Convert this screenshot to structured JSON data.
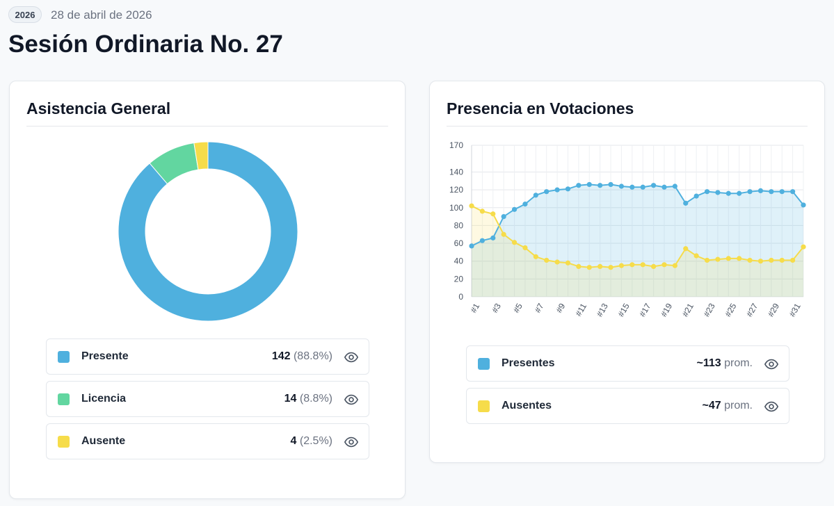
{
  "header": {
    "year_badge": "2026",
    "date": "28 de abril de 2026",
    "title": "Sesión Ordinaria No. 27"
  },
  "colors": {
    "presente": "#4fb0de",
    "licencia": "#62d6a0",
    "ausente": "#f6dc4a"
  },
  "attendance": {
    "title": "Asistencia General",
    "chart_data": {
      "type": "pie",
      "variant": "donut",
      "categories": [
        "Presente",
        "Licencia",
        "Ausente"
      ],
      "values": [
        142,
        14,
        4
      ],
      "colors": [
        "#4fb0de",
        "#62d6a0",
        "#f6dc4a"
      ]
    },
    "legend": [
      {
        "label": "Presente",
        "count": "142",
        "percent": "(88.8%)",
        "color": "#4fb0de",
        "icon": "eye-icon"
      },
      {
        "label": "Licencia",
        "count": "14",
        "percent": "(8.8%)",
        "color": "#62d6a0",
        "icon": "eye-icon"
      },
      {
        "label": "Ausente",
        "count": "4",
        "percent": "(2.5%)",
        "color": "#f6dc4a",
        "icon": "eye-icon"
      }
    ]
  },
  "votes": {
    "title": "Presencia en Votaciones",
    "chart_data": {
      "type": "area",
      "x": [
        "#1",
        "#2",
        "#3",
        "#4",
        "#5",
        "#6",
        "#7",
        "#8",
        "#9",
        "#10",
        "#11",
        "#12",
        "#13",
        "#14",
        "#15",
        "#16",
        "#17",
        "#18",
        "#19",
        "#20",
        "#21",
        "#22",
        "#23",
        "#24",
        "#25",
        "#26",
        "#27",
        "#28",
        "#29",
        "#30",
        "#31",
        "#32"
      ],
      "x_tick_labels": [
        "#1",
        "#3",
        "#5",
        "#7",
        "#9",
        "#11",
        "#13",
        "#15",
        "#17",
        "#19",
        "#21",
        "#23",
        "#25",
        "#27",
        "#29",
        "#31"
      ],
      "y_ticks": [
        0,
        20,
        40,
        60,
        80,
        100,
        120,
        140,
        170
      ],
      "ylim": [
        0,
        170
      ],
      "grid": true,
      "series": [
        {
          "name": "Presentes",
          "color": "#4fb0de",
          "values": [
            57,
            63,
            66,
            90,
            98,
            104,
            114,
            118,
            120,
            121,
            125,
            126,
            125,
            126,
            124,
            123,
            123,
            125,
            123,
            124,
            105,
            113,
            118,
            117,
            116,
            116,
            118,
            119,
            118,
            118,
            118,
            103
          ]
        },
        {
          "name": "Ausentes",
          "color": "#f6dc4a",
          "values": [
            102,
            96,
            93,
            70,
            61,
            55,
            45,
            41,
            39,
            38,
            34,
            33,
            34,
            33,
            35,
            36,
            36,
            34,
            36,
            35,
            54,
            46,
            41,
            42,
            43,
            43,
            41,
            40,
            41,
            41,
            41,
            56
          ]
        }
      ]
    },
    "legend": [
      {
        "label": "Presentes",
        "value": "~113",
        "suffix": "prom.",
        "color": "#4fb0de",
        "icon": "eye-icon"
      },
      {
        "label": "Ausentes",
        "value": "~47",
        "suffix": "prom.",
        "color": "#f6dc4a",
        "icon": "eye-icon"
      }
    ]
  }
}
